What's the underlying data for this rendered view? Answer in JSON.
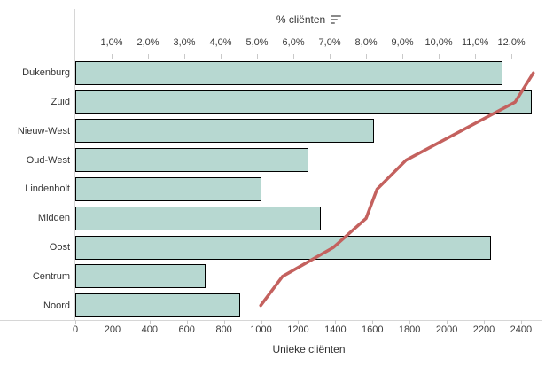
{
  "chart_data": {
    "type": "bar",
    "subtype": "horizontal-bar-with-line-overlay",
    "categories": [
      "Dukenburg",
      "Zuid",
      "Nieuw-West",
      "Oud-West",
      "Lindenholt",
      "Midden",
      "Oost",
      "Centrum",
      "Noord"
    ],
    "series": [
      {
        "name": "Unieke cliënten",
        "type": "bar",
        "axis": "bottom",
        "values": [
          2300,
          2460,
          1610,
          1255,
          1000,
          1320,
          2240,
          700,
          890
        ]
      },
      {
        "name": "% cliënten",
        "type": "line",
        "axis": "top",
        "values": [
          12.6,
          12.1,
          10.6,
          9.1,
          8.3,
          8.0,
          7.1,
          5.7,
          5.1
        ]
      }
    ],
    "top_axis": {
      "title": "% cliënten",
      "min": 0,
      "max": 12.85,
      "tick_values": [
        1,
        2,
        3,
        4,
        5,
        6,
        7,
        8,
        9,
        10,
        11,
        12
      ],
      "tick_labels": [
        "1,0%",
        "2,0%",
        "3,0%",
        "4,0%",
        "5,0%",
        "6,0%",
        "7,0%",
        "8,0%",
        "9,0%",
        "10,0%",
        "11,0%",
        "12,0%"
      ]
    },
    "bottom_axis": {
      "title": "Unieke cliënten",
      "min": 0,
      "max": 2515,
      "tick_values": [
        0,
        200,
        400,
        600,
        800,
        1000,
        1200,
        1400,
        1600,
        1800,
        2000,
        2200,
        2400
      ],
      "tick_labels": [
        "0",
        "200",
        "400",
        "600",
        "800",
        "1000",
        "1200",
        "1400",
        "1600",
        "1800",
        "2000",
        "2200",
        "2400"
      ]
    },
    "legend": "none",
    "grid": false,
    "colors": {
      "bar_fill": "#b7d8d1",
      "bar_border": "#000000",
      "line": "#c4615e",
      "axis_line": "#d6d6d6",
      "tick_mark": "#c9c9c9",
      "text": "#333333",
      "background": "#ffffff"
    },
    "icons": {
      "sort": "sort-descending-icon"
    }
  }
}
